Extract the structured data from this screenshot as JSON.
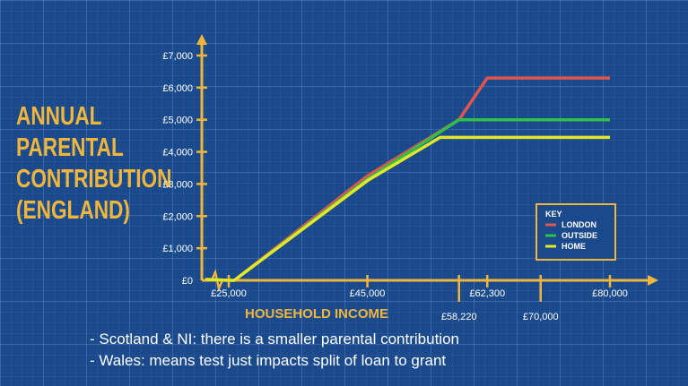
{
  "y_title_lines": [
    "ANNUAL",
    "PARENTAL",
    "CONTRIBUTION",
    "(ENGLAND)"
  ],
  "notes": [
    "- Scotland & NI: there is a smaller parental contribution",
    "- Wales: means test just impacts split of loan to grant"
  ],
  "chart_data": {
    "type": "line",
    "xlabel": "HOUSEHOLD INCOME",
    "ylabel": "ANNUAL PARENTAL CONTRIBUTION (ENGLAND)",
    "y_ticks": [
      {
        "value": 0,
        "label": "£0"
      },
      {
        "value": 1000,
        "label": "£1,000"
      },
      {
        "value": 2000,
        "label": "£2,000"
      },
      {
        "value": 3000,
        "label": "£3,000"
      },
      {
        "value": 4000,
        "label": "£4,000"
      },
      {
        "value": 5000,
        "label": "£5,000"
      },
      {
        "value": 6000,
        "label": "£6,000"
      },
      {
        "value": 7000,
        "label": "£7,000"
      }
    ],
    "x_ticks_upper": [
      {
        "value": 25000,
        "label": "£25,000"
      },
      {
        "value": 45000,
        "label": "£45,000"
      },
      {
        "value": 62300,
        "label": "£62,300"
      },
      {
        "value": 80000,
        "label": "£80,000"
      }
    ],
    "x_ticks_lower": [
      {
        "value": 58220,
        "label": "£58,220"
      },
      {
        "value": 70000,
        "label": "£70,000"
      }
    ],
    "axis_break": true,
    "xlim": [
      25000,
      80000
    ],
    "ylim": [
      0,
      7000
    ],
    "grid": true,
    "legend": {
      "title": "KEY",
      "placement": "right"
    },
    "series": [
      {
        "name": "LONDON",
        "color": "#e0554f",
        "x": [
          25000,
          25800,
          45000,
          58220,
          62300,
          80000
        ],
        "y": [
          0,
          0,
          3250,
          5000,
          6300,
          6300
        ]
      },
      {
        "name": "OUTSIDE",
        "color": "#2fbf4a",
        "x": [
          25000,
          25800,
          45000,
          58220,
          80000
        ],
        "y": [
          0,
          0,
          3150,
          5000,
          5000
        ]
      },
      {
        "name": "HOME",
        "color": "#e4e62a",
        "x": [
          25000,
          25800,
          45000,
          55500,
          80000
        ],
        "y": [
          0,
          0,
          3100,
          4450,
          4450
        ]
      }
    ]
  }
}
